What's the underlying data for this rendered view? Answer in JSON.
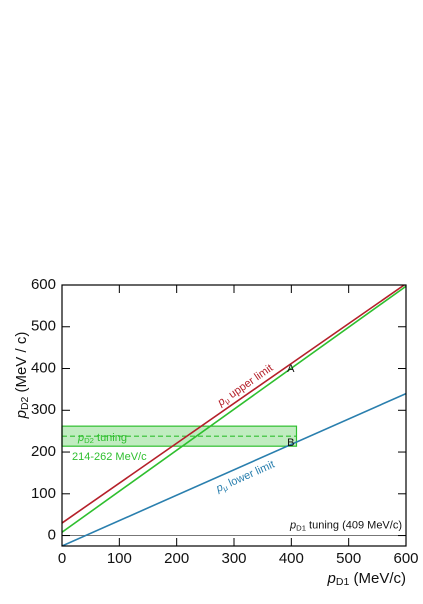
{
  "chart_data": {
    "type": "line",
    "xlabel": {
      "var": "p",
      "sub": "D1",
      "rest": " (MeV/c)"
    },
    "ylabel": {
      "var": "p",
      "sub": "D2",
      "rest": " (MeV / c)"
    },
    "xlim": [
      0,
      600
    ],
    "ylim": [
      -25,
      600
    ],
    "xticks": [
      0,
      100,
      200,
      300,
      400,
      500,
      600
    ],
    "yticks": [
      0,
      100,
      200,
      300,
      400,
      500,
      600
    ],
    "series": [
      {
        "label": {
          "var": "p",
          "sub": "μ",
          "rest": " upper limit"
        },
        "color": "#b5202a",
        "x": [
          0,
          600
        ],
        "values": [
          30,
          603
        ]
      },
      {
        "color": "#2fbf2f",
        "x": [
          0,
          600
        ],
        "values": [
          8,
          597
        ]
      },
      {
        "label": {
          "var": "p",
          "sub": "μ",
          "rest": " lower limit"
        },
        "color": "#2a7fae",
        "x": [
          0,
          600
        ],
        "values": [
          -25,
          340
        ]
      }
    ],
    "band": {
      "low": 214,
      "high": 262,
      "mid": 238,
      "x_end": 409,
      "color": "#2fbf2f",
      "label": {
        "var": "p",
        "sub": "D2",
        "rest": " tuning"
      },
      "range_label": "214-262 MeV/c"
    },
    "reference": {
      "value": 0,
      "label": {
        "var": "p",
        "sub": "D1",
        "rest": " tuning (409 MeV/c)"
      }
    },
    "points": [
      {
        "text": "A",
        "x": 410,
        "y": 418
      },
      {
        "text": "B",
        "x": 410,
        "y": 240
      }
    ]
  }
}
